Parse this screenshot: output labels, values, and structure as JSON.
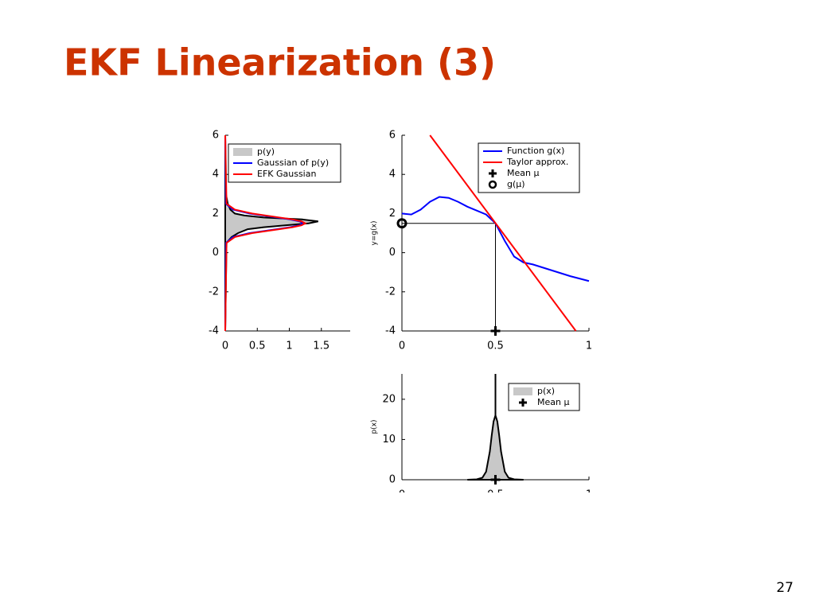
{
  "title": "EKF Linearization (3)",
  "page_number": "27",
  "chart_data": [
    {
      "type": "line",
      "legend": "upper right",
      "xlim": [
        0,
        1.95
      ],
      "xticks": [
        0,
        0.5,
        1,
        1.5
      ],
      "ylim": [
        -4,
        6
      ],
      "yticks": [
        -4,
        -2,
        0,
        2,
        4,
        6
      ],
      "series": [
        {
          "name": "p(y)",
          "color": "#000000",
          "fill_color": "#c8c8c8",
          "x": [
            0,
            0.02,
            0.1,
            0.2,
            0.35,
            0.6,
            0.95,
            1.3,
            1.45,
            1.2,
            0.6,
            0.3,
            0.15,
            0.08,
            0.04,
            0.01,
            0
          ],
          "values": [
            -4,
            0.5,
            0.8,
            1.0,
            1.2,
            1.3,
            1.4,
            1.5,
            1.6,
            1.7,
            1.8,
            1.9,
            2.0,
            2.2,
            2.5,
            3,
            6
          ]
        },
        {
          "name": "Gaussian of p(y)",
          "color": "#0000ff",
          "x": [
            0,
            0.01,
            0.12,
            0.38,
            0.8,
            1.01,
            1.16,
            1.22,
            1.16,
            1.01,
            0.8,
            0.38,
            0.12,
            0.01,
            0
          ],
          "values": [
            -4,
            0.5,
            0.8,
            1.0,
            1.2,
            1.3,
            1.4,
            1.5,
            1.6,
            1.7,
            1.8,
            2.0,
            2.2,
            2.5,
            6
          ]
        },
        {
          "name": "EFK Gaussian",
          "color": "#ff0000",
          "x": [
            0,
            0.02,
            0.15,
            0.42,
            0.84,
            1.05,
            1.19,
            1.25,
            1.19,
            1.05,
            0.84,
            0.42,
            0.15,
            0.02,
            0
          ],
          "values": [
            -4,
            0.5,
            0.8,
            1.0,
            1.2,
            1.3,
            1.4,
            1.5,
            1.6,
            1.7,
            1.8,
            2.0,
            2.2,
            2.5,
            6
          ]
        }
      ]
    },
    {
      "type": "line",
      "legend": "upper right",
      "ylabel": "y=g(x)",
      "xlim": [
        0,
        1
      ],
      "xticks": [
        0,
        0.5,
        1
      ],
      "ylim": [
        -4,
        6
      ],
      "yticks": [
        -4,
        -2,
        0,
        2,
        4,
        6
      ],
      "series": [
        {
          "name": "Function g(x)",
          "color": "#0000ff",
          "x": [
            0,
            0.05,
            0.1,
            0.15,
            0.2,
            0.25,
            0.3,
            0.35,
            0.4,
            0.45,
            0.5,
            0.55,
            0.6,
            0.65,
            0.7,
            0.8,
            0.9,
            1.0
          ],
          "values": [
            2.0,
            1.95,
            2.2,
            2.6,
            2.85,
            2.8,
            2.6,
            2.35,
            2.15,
            1.95,
            1.5,
            0.6,
            -0.2,
            -0.5,
            -0.6,
            -0.9,
            -1.2,
            -1.45
          ]
        },
        {
          "name": "Taylor approx.",
          "color": "#ff0000",
          "x": [
            0.15,
            0.93
          ],
          "values": [
            6,
            -4
          ]
        },
        {
          "name": "Mean μ",
          "color": "#000000",
          "marker": "plus",
          "x": [
            0.5
          ],
          "values": [
            -4
          ]
        },
        {
          "name": "g(μ)",
          "color": "#000000",
          "marker": "circle",
          "x": [
            0
          ],
          "values": [
            1.5
          ]
        }
      ]
    },
    {
      "type": "line",
      "legend": "upper right",
      "ylabel": "p(x)",
      "xlim": [
        0,
        1
      ],
      "xticks": [
        0,
        0.5,
        1
      ],
      "ylim": [
        0,
        26.3
      ],
      "yticks": [
        0,
        10,
        20
      ],
      "series": [
        {
          "name": "p(x)",
          "color": "#000000",
          "fill_color": "#c8c8c8",
          "x": [
            0.35,
            0.4,
            0.43,
            0.45,
            0.47,
            0.48,
            0.49,
            0.5,
            0.51,
            0.52,
            0.53,
            0.55,
            0.57,
            0.6,
            0.65
          ],
          "values": [
            0,
            0.1,
            0.5,
            2.0,
            7.0,
            11,
            14.5,
            16,
            14.5,
            11,
            7,
            2,
            0.5,
            0.1,
            0
          ]
        },
        {
          "name": "Mean μ",
          "color": "#000000",
          "marker": "plus",
          "x": [
            0.5
          ],
          "values": [
            0
          ]
        }
      ]
    }
  ]
}
